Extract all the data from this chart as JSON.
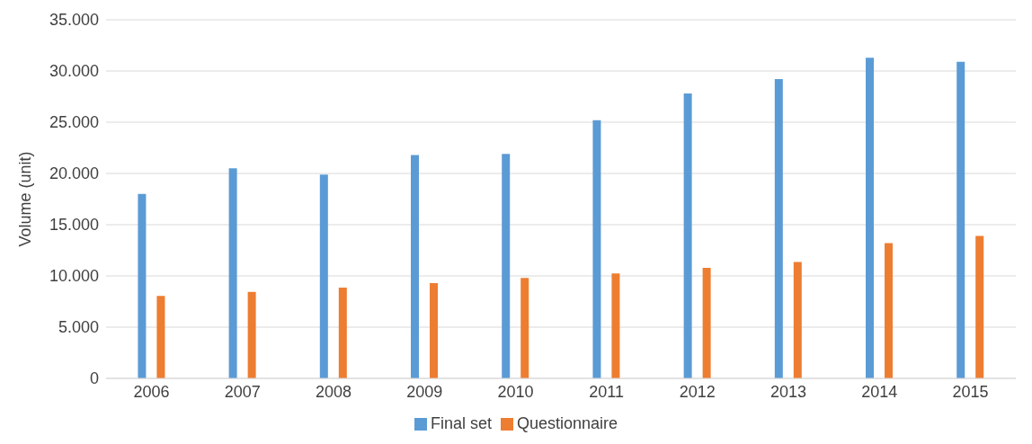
{
  "chart_data": {
    "type": "bar",
    "ylabel": "Volume (unit)",
    "categories": [
      "2006",
      "2007",
      "2008",
      "2009",
      "2010",
      "2011",
      "2012",
      "2013",
      "2014",
      "2015"
    ],
    "series": [
      {
        "name": "Final set",
        "color": "#5b9bd5",
        "values": [
          18000,
          20500,
          19900,
          21800,
          21900,
          25200,
          27800,
          29200,
          31300,
          30900
        ]
      },
      {
        "name": "Questionnaire",
        "color": "#ed7d31",
        "values": [
          8050,
          8450,
          8850,
          9300,
          9800,
          10250,
          10800,
          11350,
          13200,
          13900
        ]
      }
    ],
    "ylim": [
      0,
      35000
    ],
    "yticks": [
      {
        "value": 0,
        "label": "0"
      },
      {
        "value": 5000,
        "label": "5.000"
      },
      {
        "value": 10000,
        "label": "10.000"
      },
      {
        "value": 15000,
        "label": "15.000"
      },
      {
        "value": 20000,
        "label": "20.000"
      },
      {
        "value": 25000,
        "label": "25.000"
      },
      {
        "value": 30000,
        "label": "30.000"
      },
      {
        "value": 35000,
        "label": "35.000"
      }
    ],
    "grid": "y",
    "legend": "bottom"
  }
}
